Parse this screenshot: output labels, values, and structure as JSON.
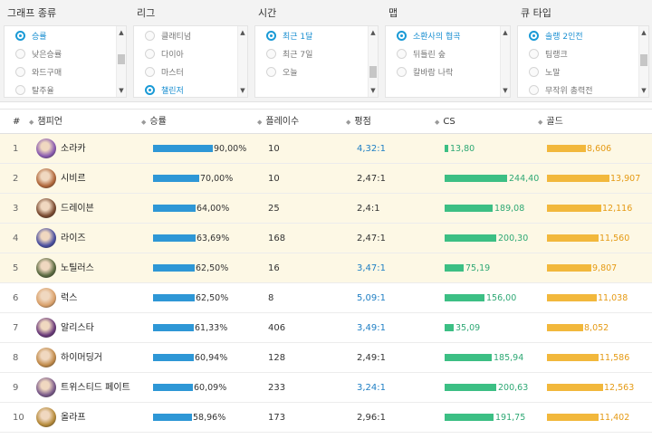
{
  "filters": [
    {
      "label": "그래프 종류",
      "options": [
        "승률",
        "낮은승률",
        "와드구매",
        "탈주율"
      ],
      "selected": 0,
      "thumb": [
        0.35,
        0.55
      ]
    },
    {
      "label": "리그",
      "options": [
        "클래티넘",
        "다이아",
        "마스터",
        "챌린저"
      ],
      "selected": 3,
      "thumb": [
        0.0,
        0.0
      ]
    },
    {
      "label": "시간",
      "options": [
        "최근 1달",
        "최근 7일",
        "오늘"
      ],
      "selected": 0,
      "thumb": [
        0.6,
        0.85
      ]
    },
    {
      "label": "맵",
      "options": [
        "소환사의 협곡",
        "뒤틀린 숲",
        "칼바람 나락"
      ],
      "selected": 0,
      "thumb": [
        0.0,
        0.0
      ]
    },
    {
      "label": "큐 타입",
      "options": [
        "솔랭 2인전",
        "팀랭크",
        "노말",
        "무작위 총력전"
      ],
      "selected": 0,
      "thumb": [
        0.35,
        0.6
      ]
    }
  ],
  "table": {
    "headers": {
      "rank": "#",
      "champion": "챔피언",
      "winrate": "승률",
      "games": "플레이수",
      "kda": "평점",
      "cs": "CS",
      "gold": "골드"
    },
    "rows": [
      {
        "rank": "1",
        "name": "소라카",
        "winrate": "90,00%",
        "win": 90.0,
        "games": "10",
        "kda": "4,32:1",
        "kda_blue": true,
        "cs": "13,80",
        "cs_v": 13.8,
        "gold": "8,606",
        "gold_v": 8606,
        "hl": true,
        "avatar": "#8a5bb0"
      },
      {
        "rank": "2",
        "name": "시비르",
        "winrate": "70,00%",
        "win": 70.0,
        "games": "10",
        "kda": "2,47:1",
        "kda_blue": false,
        "cs": "244,40",
        "cs_v": 244.4,
        "gold": "13,907",
        "gold_v": 13907,
        "hl": true,
        "avatar": "#b0673a"
      },
      {
        "rank": "3",
        "name": "드레이븐",
        "winrate": "64,00%",
        "win": 64.0,
        "games": "25",
        "kda": "2,4:1",
        "kda_blue": false,
        "cs": "189,08",
        "cs_v": 189.08,
        "gold": "12,116",
        "gold_v": 12116,
        "hl": true,
        "avatar": "#7a4a30"
      },
      {
        "rank": "4",
        "name": "라이즈",
        "winrate": "63,69%",
        "win": 63.69,
        "games": "168",
        "kda": "2,47:1",
        "kda_blue": false,
        "cs": "200,30",
        "cs_v": 200.3,
        "gold": "11,560",
        "gold_v": 11560,
        "hl": true,
        "avatar": "#4a4fa0"
      },
      {
        "rank": "5",
        "name": "노틸러스",
        "winrate": "62,50%",
        "win": 62.5,
        "games": "16",
        "kda": "3,47:1",
        "kda_blue": true,
        "cs": "75,19",
        "cs_v": 75.19,
        "gold": "9,807",
        "gold_v": 9807,
        "hl": true,
        "avatar": "#5a6a40"
      },
      {
        "rank": "6",
        "name": "럭스",
        "winrate": "62,50%",
        "win": 62.5,
        "games": "8",
        "kda": "5,09:1",
        "kda_blue": true,
        "cs": "156,00",
        "cs_v": 156.0,
        "gold": "11,038",
        "gold_v": 11038,
        "hl": false,
        "avatar": "#d9a06a"
      },
      {
        "rank": "7",
        "name": "알리스타",
        "winrate": "61,33%",
        "win": 61.33,
        "games": "406",
        "kda": "3,49:1",
        "kda_blue": true,
        "cs": "35,09",
        "cs_v": 35.09,
        "gold": "8,052",
        "gold_v": 8052,
        "hl": false,
        "avatar": "#6a3a7a"
      },
      {
        "rank": "8",
        "name": "하이머딩거",
        "winrate": "60,94%",
        "win": 60.94,
        "games": "128",
        "kda": "2,49:1",
        "kda_blue": false,
        "cs": "185,94",
        "cs_v": 185.94,
        "gold": "11,586",
        "gold_v": 11586,
        "hl": false,
        "avatar": "#c08a4a"
      },
      {
        "rank": "9",
        "name": "트위스티드 페이트",
        "winrate": "60,09%",
        "win": 60.09,
        "games": "233",
        "kda": "3,24:1",
        "kda_blue": true,
        "cs": "200,63",
        "cs_v": 200.63,
        "gold": "12,563",
        "gold_v": 12563,
        "hl": false,
        "avatar": "#7a5a8a"
      },
      {
        "rank": "10",
        "name": "올라프",
        "winrate": "58,96%",
        "win": 58.96,
        "games": "173",
        "kda": "2,96:1",
        "kda_blue": false,
        "cs": "191,75",
        "cs_v": 191.75,
        "gold": "11,402",
        "gold_v": 11402,
        "hl": false,
        "avatar": "#b58a3a"
      }
    ]
  }
}
